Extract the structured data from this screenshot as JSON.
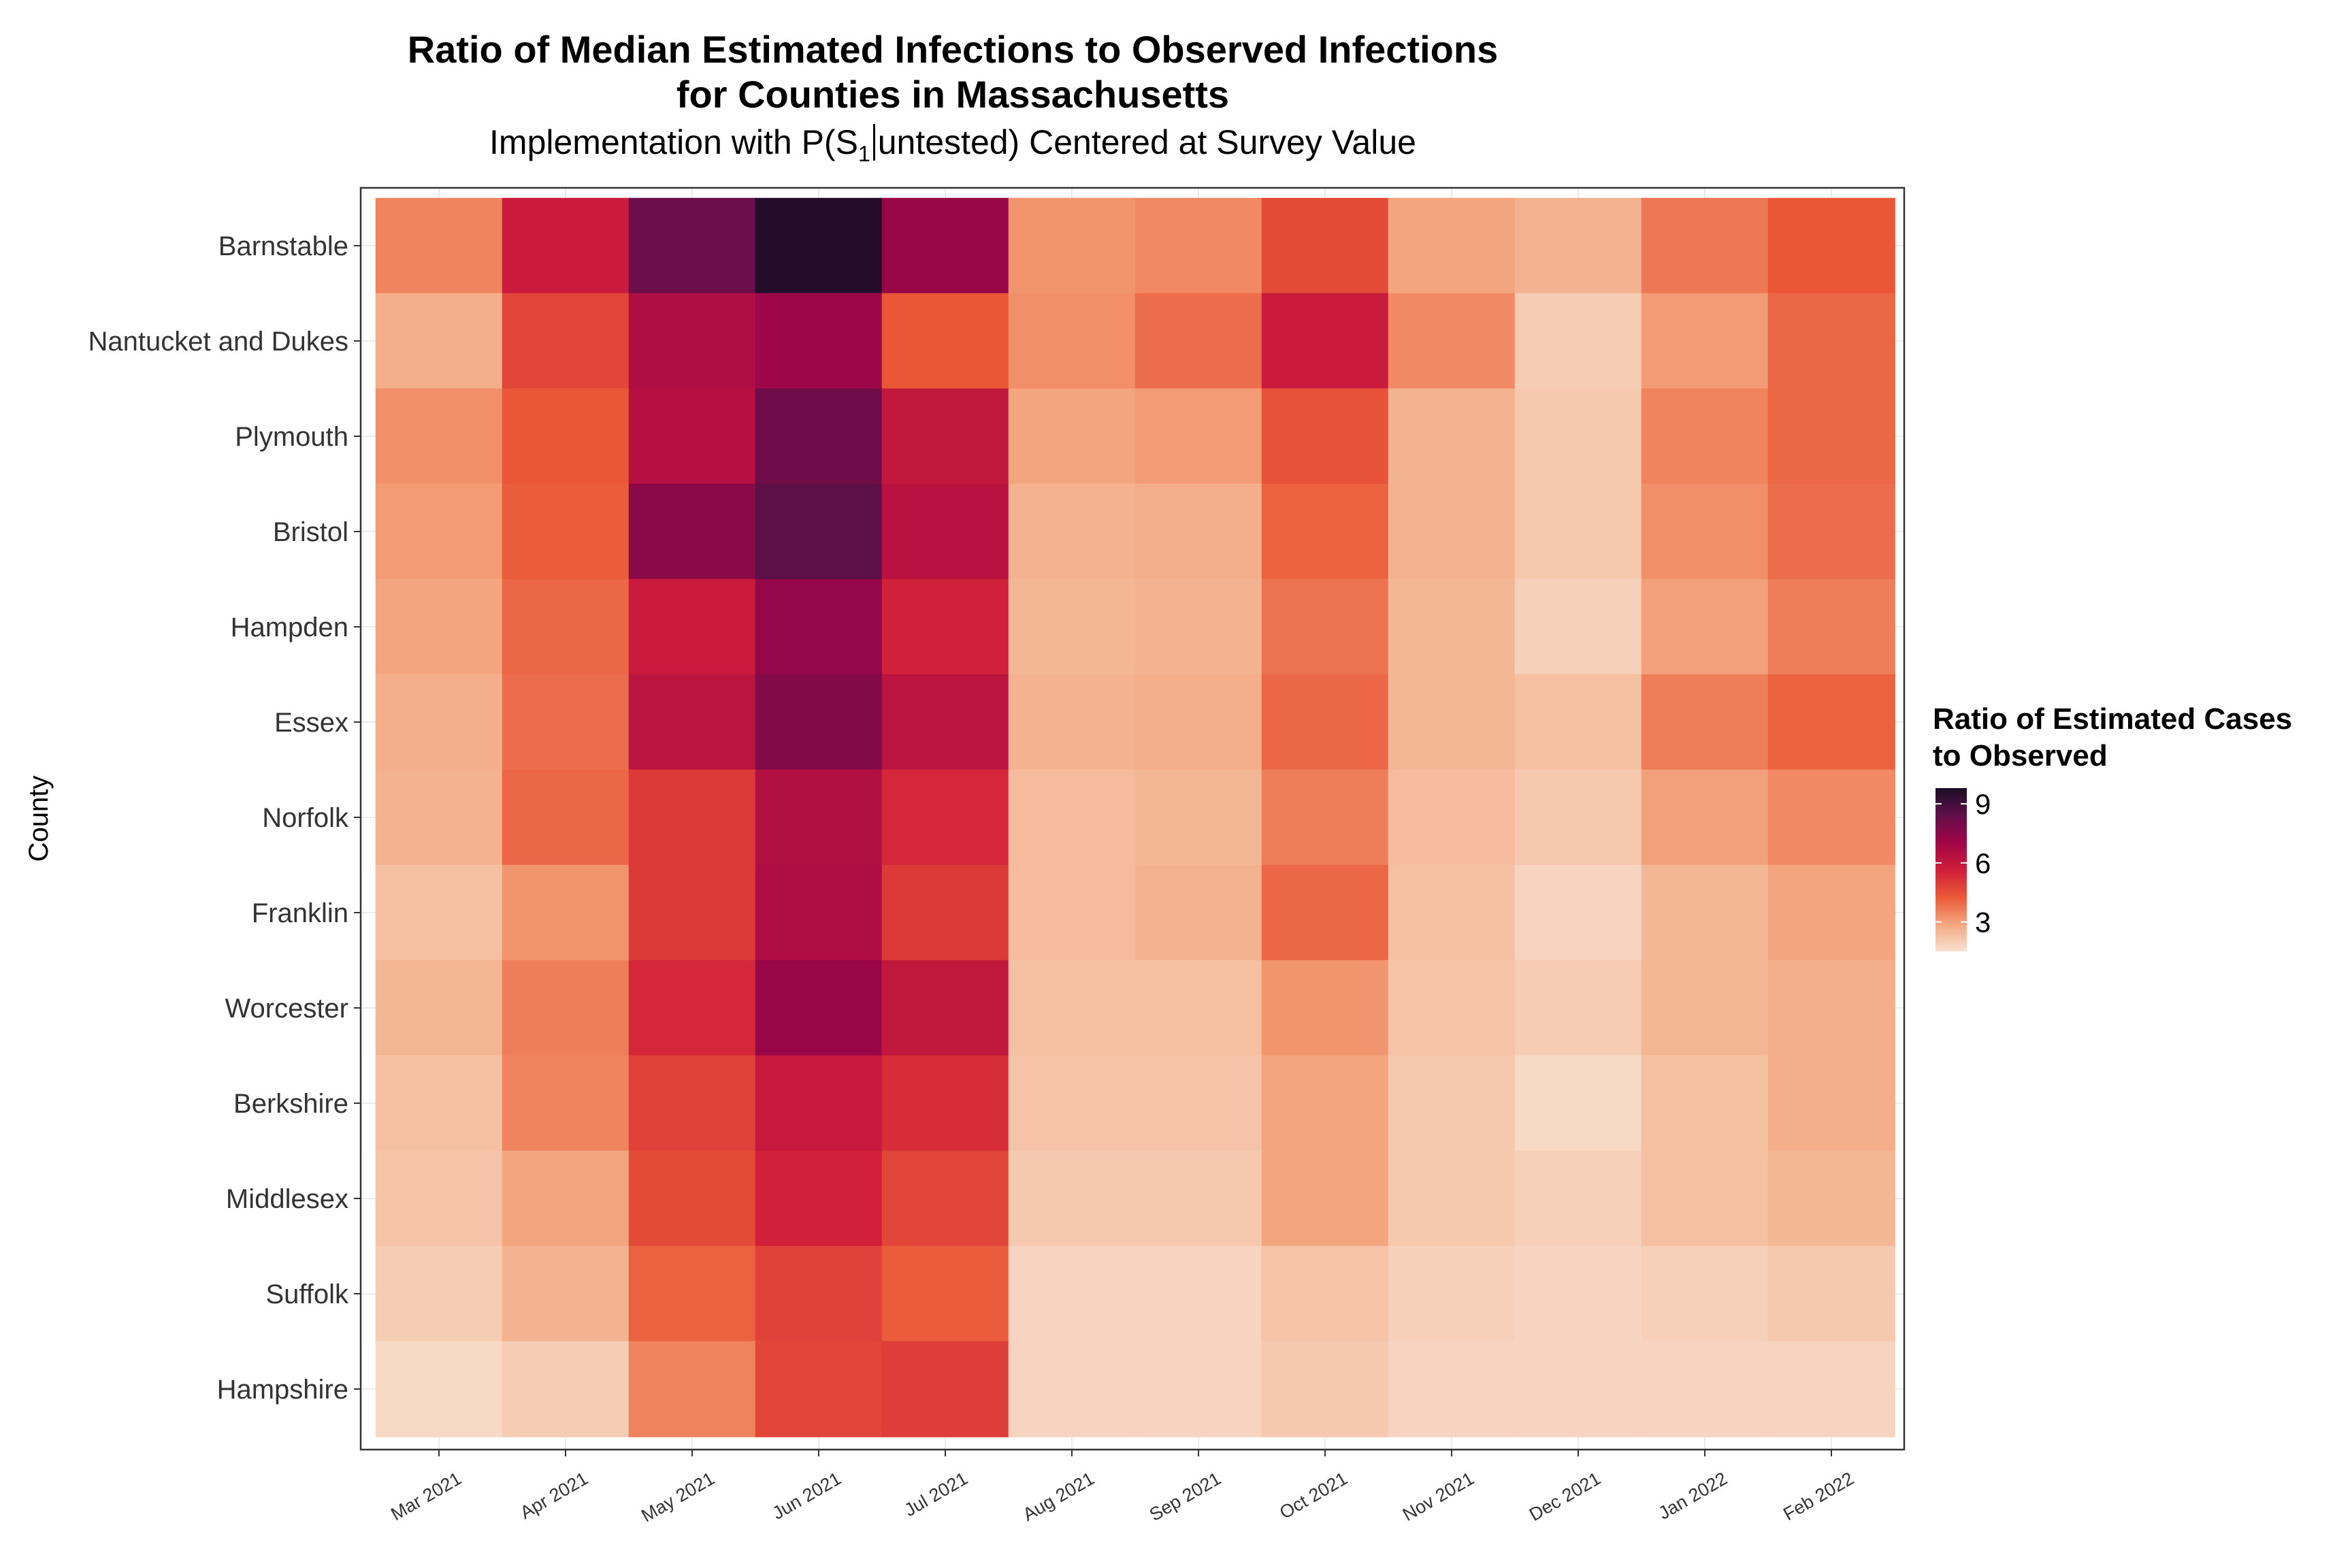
{
  "title": {
    "line1": "Ratio of Median Estimated Infections to Observed Infections",
    "line2": "for Counties in Massachusetts",
    "subtitle_pre": "Implementation with P(S",
    "subtitle_sub": "1",
    "subtitle_post": "untested) Centered at Survey Value"
  },
  "legend": {
    "title_line1": "Ratio of Estimated Cases",
    "title_line2": "to Observed",
    "ticks": [
      3,
      6,
      9
    ],
    "range": [
      1.5,
      9.8
    ]
  },
  "colors": {
    "scale": [
      "#f8e1d1",
      "#f3a77f",
      "#ea5838",
      "#cf1e3a",
      "#a00548",
      "#611049",
      "#1a0d25"
    ],
    "panel_border": "#333333",
    "grid": "#ebebeb"
  },
  "chart_data": {
    "type": "heatmap",
    "title": "Ratio of Median Estimated Infections to Observed Infections for Counties in Massachusetts",
    "subtitle": "Implementation with P(S1|untested) Centered at Survey Value",
    "xlabel": "",
    "ylabel": "County",
    "x": [
      "Mar 2021",
      "Apr 2021",
      "May 2021",
      "Jun 2021",
      "Jul 2021",
      "Aug 2021",
      "Sep 2021",
      "Oct 2021",
      "Nov 2021",
      "Dec 2021",
      "Jan 2022",
      "Feb 2022"
    ],
    "y": [
      "Barnstable",
      "Nantucket and Dukes",
      "Plymouth",
      "Bristol",
      "Hampden",
      "Essex",
      "Norfolk",
      "Franklin",
      "Worcester",
      "Berkshire",
      "Middlesex",
      "Suffolk",
      "Hampshire"
    ],
    "values": [
      [
        3.5,
        5.8,
        8.2,
        9.6,
        7.2,
        3.2,
        3.4,
        4.6,
        2.9,
        2.6,
        3.7,
        4.3
      ],
      [
        2.7,
        4.7,
        6.6,
        7.1,
        4.3,
        3.3,
        3.9,
        5.8,
        3.4,
        2.0,
        3.1,
        4.0
      ],
      [
        3.3,
        4.3,
        6.4,
        8.1,
        6.0,
        2.9,
        3.1,
        4.4,
        2.6,
        2.1,
        3.5,
        4.0
      ],
      [
        3.1,
        4.2,
        7.5,
        8.5,
        6.3,
        2.6,
        2.7,
        4.1,
        2.6,
        2.1,
        3.3,
        3.9
      ],
      [
        2.9,
        4.0,
        5.8,
        7.3,
        5.6,
        2.5,
        2.6,
        3.8,
        2.5,
        1.9,
        3.0,
        3.6
      ],
      [
        2.7,
        3.9,
        6.2,
        7.7,
        6.2,
        2.6,
        2.7,
        4.0,
        2.5,
        2.3,
        3.6,
        4.1
      ],
      [
        2.6,
        4.0,
        5.0,
        6.5,
        5.4,
        2.4,
        2.5,
        3.6,
        2.4,
        2.1,
        3.0,
        3.4
      ],
      [
        2.3,
        3.2,
        5.0,
        6.6,
        5.0,
        2.4,
        2.6,
        4.0,
        2.3,
        1.8,
        2.5,
        2.9
      ],
      [
        2.5,
        3.6,
        5.4,
        7.2,
        6.0,
        2.3,
        2.3,
        3.2,
        2.2,
        2.0,
        2.5,
        2.7
      ],
      [
        2.3,
        3.5,
        4.8,
        5.9,
        5.3,
        2.2,
        2.2,
        2.9,
        2.1,
        1.7,
        2.3,
        2.7
      ],
      [
        2.2,
        2.9,
        4.6,
        5.6,
        4.7,
        2.1,
        2.1,
        2.9,
        2.1,
        1.9,
        2.3,
        2.5
      ],
      [
        2.0,
        2.6,
        4.1,
        4.8,
        4.2,
        1.8,
        1.8,
        2.2,
        1.9,
        1.8,
        1.9,
        2.1
      ],
      [
        1.7,
        2.0,
        3.5,
        4.7,
        4.9,
        1.8,
        1.8,
        2.1,
        1.8,
        1.8,
        1.8,
        1.8
      ]
    ],
    "colorbar_ticks": [
      3,
      6,
      9
    ],
    "legend_title": "Ratio of Estimated Cases to Observed",
    "legend_position": "right",
    "grid": true
  }
}
